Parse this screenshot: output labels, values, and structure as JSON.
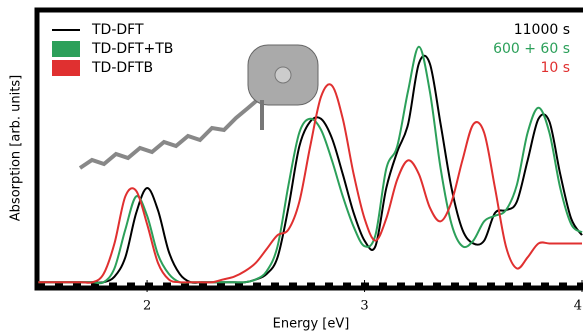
{
  "chart_data": {
    "type": "line",
    "xlabel": "Energy [eV]",
    "ylabel": "Absorption [arb. units]",
    "x": [
      1.5,
      1.55,
      1.6,
      1.65,
      1.7,
      1.75,
      1.8,
      1.85,
      1.9,
      1.95,
      2.0,
      2.05,
      2.1,
      2.15,
      2.2,
      2.25,
      2.3,
      2.35,
      2.4,
      2.45,
      2.5,
      2.55,
      2.6,
      2.65,
      2.7,
      2.75,
      2.8,
      2.85,
      2.9,
      2.95,
      3.0,
      3.05,
      3.1,
      3.15,
      3.2,
      3.25,
      3.3,
      3.35,
      3.4,
      3.45,
      3.5,
      3.55,
      3.6,
      3.65,
      3.7,
      3.75,
      3.8,
      3.85,
      3.9,
      3.95,
      4.0
    ],
    "series": [
      {
        "name": "TD-DFT",
        "color": "#000000",
        "values": [
          0.01,
          0.01,
          0.01,
          0.01,
          0.01,
          0.01,
          0.01,
          0.03,
          0.1,
          0.26,
          0.35,
          0.27,
          0.12,
          0.04,
          0.01,
          0.01,
          0.01,
          0.01,
          0.01,
          0.01,
          0.02,
          0.04,
          0.1,
          0.28,
          0.5,
          0.59,
          0.6,
          0.53,
          0.4,
          0.26,
          0.16,
          0.14,
          0.35,
          0.48,
          0.58,
          0.8,
          0.8,
          0.58,
          0.35,
          0.2,
          0.15,
          0.16,
          0.26,
          0.27,
          0.3,
          0.45,
          0.6,
          0.59,
          0.4,
          0.24,
          0.18
        ]
      },
      {
        "name": "TD-DFT+TB",
        "color": "#2ca05a",
        "values": [
          0.01,
          0.01,
          0.01,
          0.01,
          0.01,
          0.01,
          0.01,
          0.06,
          0.2,
          0.32,
          0.25,
          0.11,
          0.04,
          0.01,
          0.01,
          0.01,
          0.01,
          0.01,
          0.01,
          0.01,
          0.02,
          0.05,
          0.14,
          0.36,
          0.55,
          0.6,
          0.56,
          0.45,
          0.32,
          0.21,
          0.14,
          0.18,
          0.42,
          0.5,
          0.7,
          0.86,
          0.7,
          0.42,
          0.22,
          0.14,
          0.16,
          0.23,
          0.25,
          0.27,
          0.36,
          0.55,
          0.64,
          0.55,
          0.35,
          0.22,
          0.19
        ]
      },
      {
        "name": "TD-DFTB",
        "color": "#e03030",
        "values": [
          0.01,
          0.01,
          0.01,
          0.01,
          0.01,
          0.01,
          0.04,
          0.15,
          0.32,
          0.34,
          0.22,
          0.08,
          0.02,
          0.01,
          0.01,
          0.01,
          0.01,
          0.02,
          0.03,
          0.05,
          0.08,
          0.13,
          0.18,
          0.2,
          0.3,
          0.5,
          0.68,
          0.72,
          0.6,
          0.4,
          0.24,
          0.16,
          0.24,
          0.38,
          0.45,
          0.4,
          0.28,
          0.23,
          0.3,
          0.45,
          0.58,
          0.55,
          0.35,
          0.14,
          0.06,
          0.1,
          0.15,
          0.15,
          0.15,
          0.15,
          0.15
        ]
      }
    ],
    "annotations": [
      {
        "text": "11000 s",
        "color": "#000000"
      },
      {
        "text": "600 + 60 s",
        "color": "#2ca05a"
      },
      {
        "text": "10 s",
        "color": "#e03030"
      }
    ],
    "xlim": [
      1.48,
      4.0
    ],
    "xticks": [
      2,
      3,
      4
    ],
    "ylim": [
      0,
      1
    ]
  }
}
